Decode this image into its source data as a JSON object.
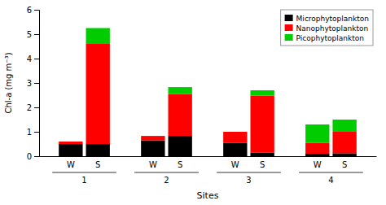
{
  "chart_data": {
    "type": "bar",
    "stacked": true,
    "x_label": "Sites",
    "y_label": "Chl-a (mg m⁻³)",
    "categories": [
      "W",
      "S",
      "W",
      "S",
      "W",
      "S",
      "W",
      "S"
    ],
    "groups": [
      "1",
      "2",
      "3",
      "4"
    ],
    "series": [
      {
        "name": "Microphytoplankton",
        "color": "#000000",
        "values": [
          0.5,
          0.5,
          0.65,
          0.83,
          0.55,
          0.15,
          0.1,
          0.12
        ]
      },
      {
        "name": "Nanophytoplankton",
        "color": "#ff0000",
        "values": [
          0.1,
          4.1,
          0.18,
          1.72,
          0.45,
          2.33,
          0.45,
          0.88
        ]
      },
      {
        "name": "Picophytoplankton",
        "color": "#00cc00",
        "values": [
          0.0,
          0.65,
          0.0,
          0.28,
          0.0,
          0.22,
          0.75,
          0.5
        ]
      }
    ],
    "ylim": [
      0,
      6
    ],
    "yticks": [
      0,
      1,
      2,
      3,
      4,
      5,
      6
    ],
    "grid": false,
    "legend": "upper right"
  }
}
